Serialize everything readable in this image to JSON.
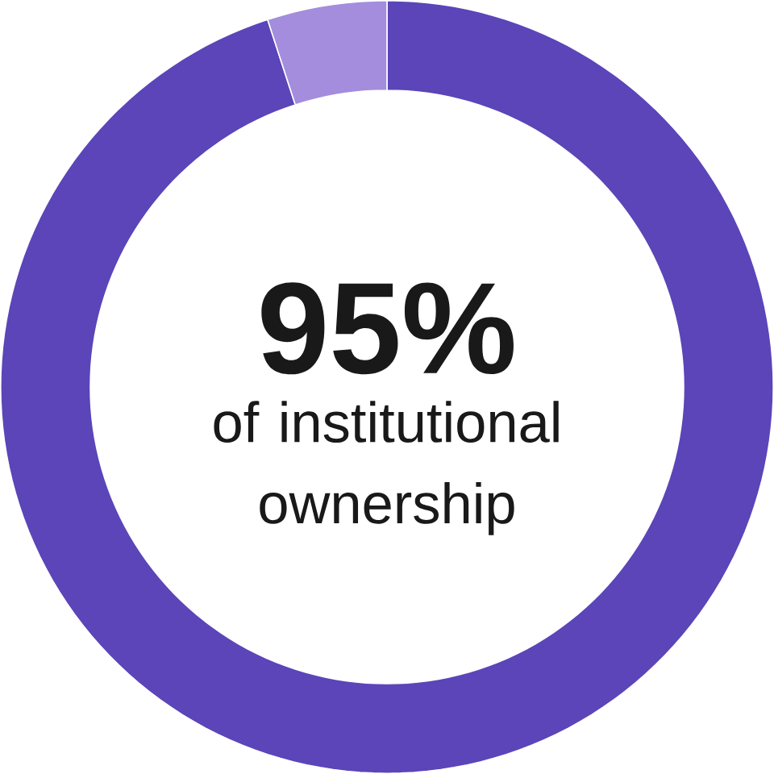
{
  "chart_data": {
    "type": "donut",
    "categories": [
      null,
      null
    ],
    "values": [
      95,
      5
    ],
    "colors": [
      "#5b45b8",
      "#a38ddc"
    ],
    "annotations": [
      "95%",
      "of institutional ownership"
    ]
  }
}
